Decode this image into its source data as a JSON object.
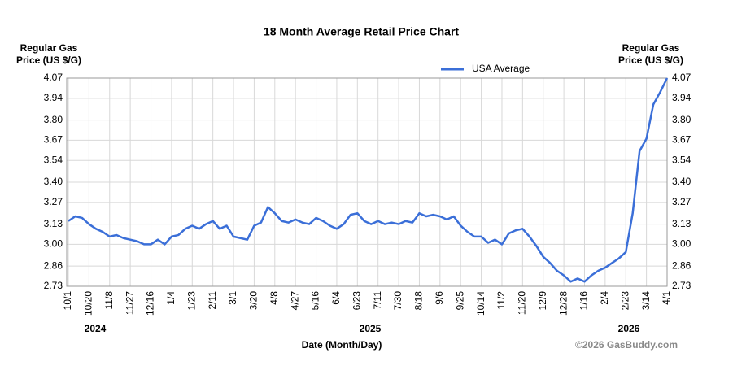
{
  "chart_data": {
    "type": "line",
    "title": "18 Month Average Retail Price Chart",
    "ylabel": [
      "Regular Gas",
      "Price (US $/G)"
    ],
    "y2label": [
      "Regular Gas",
      "Price (US $/G)"
    ],
    "xlabel": "Date (Month/Day)",
    "year_labels": [
      "2024",
      "2025",
      "2026"
    ],
    "credit": "©2026 GasBuddy.com",
    "legend": "top-right",
    "grid": true,
    "ylim": [
      2.73,
      4.07
    ],
    "yticks": [
      2.73,
      2.86,
      {
        "value": 3.0,
        "label": "3.00"
      },
      3.13,
      3.27,
      {
        "value": 3.4,
        "label": "3.40"
      },
      3.54,
      3.67,
      {
        "value": 3.8,
        "label": "3.80"
      },
      3.94,
      4.07
    ],
    "y2lim": [
      2.73,
      4.07
    ],
    "y2ticks": [
      2.73,
      2.86,
      {
        "value": 3.0,
        "label": "3.00"
      },
      3.13,
      3.27,
      {
        "value": 3.4,
        "label": "3.40"
      },
      3.54,
      3.67,
      {
        "value": 3.8,
        "label": "3.80"
      },
      3.94,
      4.07
    ],
    "categories": [
      "10/1",
      null,
      null,
      "10/20",
      null,
      null,
      "11/8",
      null,
      null,
      "11/27",
      null,
      null,
      "12/16",
      null,
      null,
      "1/4",
      null,
      null,
      "1/23",
      null,
      null,
      "2/11",
      null,
      null,
      "3/1",
      null,
      null,
      "3/20",
      null,
      null,
      "4/8",
      null,
      null,
      "4/27",
      null,
      null,
      "5/16",
      null,
      null,
      "6/4",
      null,
      null,
      "6/23",
      null,
      null,
      "7/11",
      null,
      null,
      "7/30",
      null,
      null,
      "8/18",
      null,
      null,
      "9/6",
      null,
      null,
      "9/25",
      null,
      null,
      "10/14",
      null,
      null,
      "11/2",
      null,
      null,
      "11/20",
      null,
      null,
      "12/9",
      null,
      null,
      "12/28",
      null,
      null,
      "1/16",
      null,
      null,
      "2/4",
      null,
      null,
      "2/23",
      null,
      null,
      "3/14",
      null,
      null,
      "4/1"
    ],
    "series": [
      {
        "name": "USA Average",
        "color": "#3b6fd8",
        "values": [
          3.15,
          3.18,
          3.17,
          3.13,
          3.1,
          3.08,
          3.05,
          3.06,
          3.04,
          3.03,
          3.02,
          3.0,
          3.0,
          3.03,
          3.0,
          3.05,
          3.06,
          3.1,
          3.12,
          3.1,
          3.13,
          3.15,
          3.1,
          3.12,
          3.05,
          3.04,
          3.03,
          3.12,
          3.14,
          3.24,
          3.2,
          3.15,
          3.14,
          3.16,
          3.14,
          3.13,
          3.17,
          3.15,
          3.12,
          3.1,
          3.13,
          3.19,
          3.2,
          3.15,
          3.13,
          3.15,
          3.13,
          3.14,
          3.13,
          3.15,
          3.14,
          3.2,
          3.18,
          3.19,
          3.18,
          3.16,
          3.18,
          3.12,
          3.08,
          3.05,
          3.05,
          3.01,
          3.03,
          3.0,
          3.07,
          3.09,
          3.1,
          3.05,
          2.99,
          2.92,
          2.88,
          2.83,
          2.8,
          2.76,
          2.78,
          2.76,
          2.8,
          2.83,
          2.85,
          2.88,
          2.91,
          2.95,
          3.2,
          3.6,
          3.68,
          3.9,
          3.98,
          4.07
        ]
      }
    ]
  }
}
